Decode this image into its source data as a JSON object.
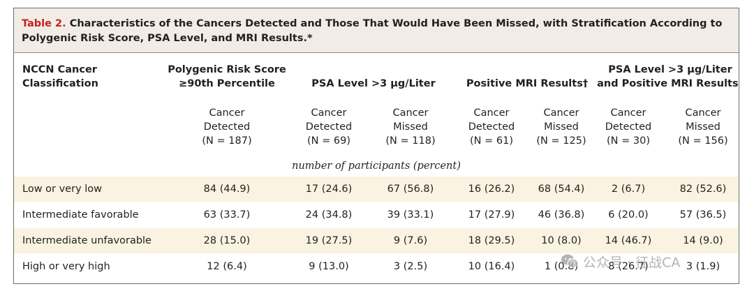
{
  "title": {
    "label": "Table 2.",
    "text": " Characteristics of the Cancers Detected and Those That Would Have Been Missed, with Stratification According to Polygenic Risk Score, PSA Level, and MRI Results.*"
  },
  "headers": {
    "classification": [
      "NCCN Cancer",
      "Classification"
    ],
    "prs": [
      "Polygenic Risk Score",
      "≥90th Percentile"
    ],
    "psa": "PSA Level >3 μg/Liter",
    "mri": "Positive MRI Results†",
    "combined": [
      "PSA Level >3 μg/Liter",
      "and Positive MRI Results†"
    ]
  },
  "subheaders": [
    [
      "Cancer",
      "Detected",
      "(N = 187)"
    ],
    [
      "Cancer",
      "Detected",
      "(N = 69)"
    ],
    [
      "Cancer",
      "Missed",
      "(N = 118)"
    ],
    [
      "Cancer",
      "Detected",
      "(N = 61)"
    ],
    [
      "Cancer",
      "Missed",
      "(N = 125)"
    ],
    [
      "Cancer",
      "Detected",
      "(N = 30)"
    ],
    [
      "Cancer",
      "Missed",
      "(N = 156)"
    ]
  ],
  "unit_note": "number of participants (percent)",
  "rows": [
    {
      "label": "Low or very low",
      "values": [
        "84 (44.9)",
        "17 (24.6)",
        "67 (56.8)",
        "16 (26.2)",
        "68 (54.4)",
        "2 (6.7)",
        "82 (52.6)"
      ]
    },
    {
      "label": "Intermediate favorable",
      "values": [
        "63 (33.7)",
        "24 (34.8)",
        "39 (33.1)",
        "17 (27.9)",
        "46 (36.8)",
        "6 (20.0)",
        "57 (36.5)"
      ]
    },
    {
      "label": "Intermediate unfavorable",
      "values": [
        "28 (15.0)",
        "19 (27.5)",
        "9 (7.6)",
        "18 (29.5)",
        "10 (8.0)",
        "14 (46.7)",
        "14 (9.0)"
      ]
    },
    {
      "label": "High or very high",
      "values": [
        "12 (6.4)",
        "9 (13.0)",
        "3 (2.5)",
        "10 (16.4)",
        "1 (0.8)",
        "8 (26.7)",
        "3 (1.9)"
      ]
    }
  ],
  "watermark": "公众号 · 征战CA",
  "colors": {
    "title_label": "#c3211f",
    "title_bg": "#f1ede6",
    "row_shade": "#fbf3e1",
    "border": "#6b6b6b"
  }
}
